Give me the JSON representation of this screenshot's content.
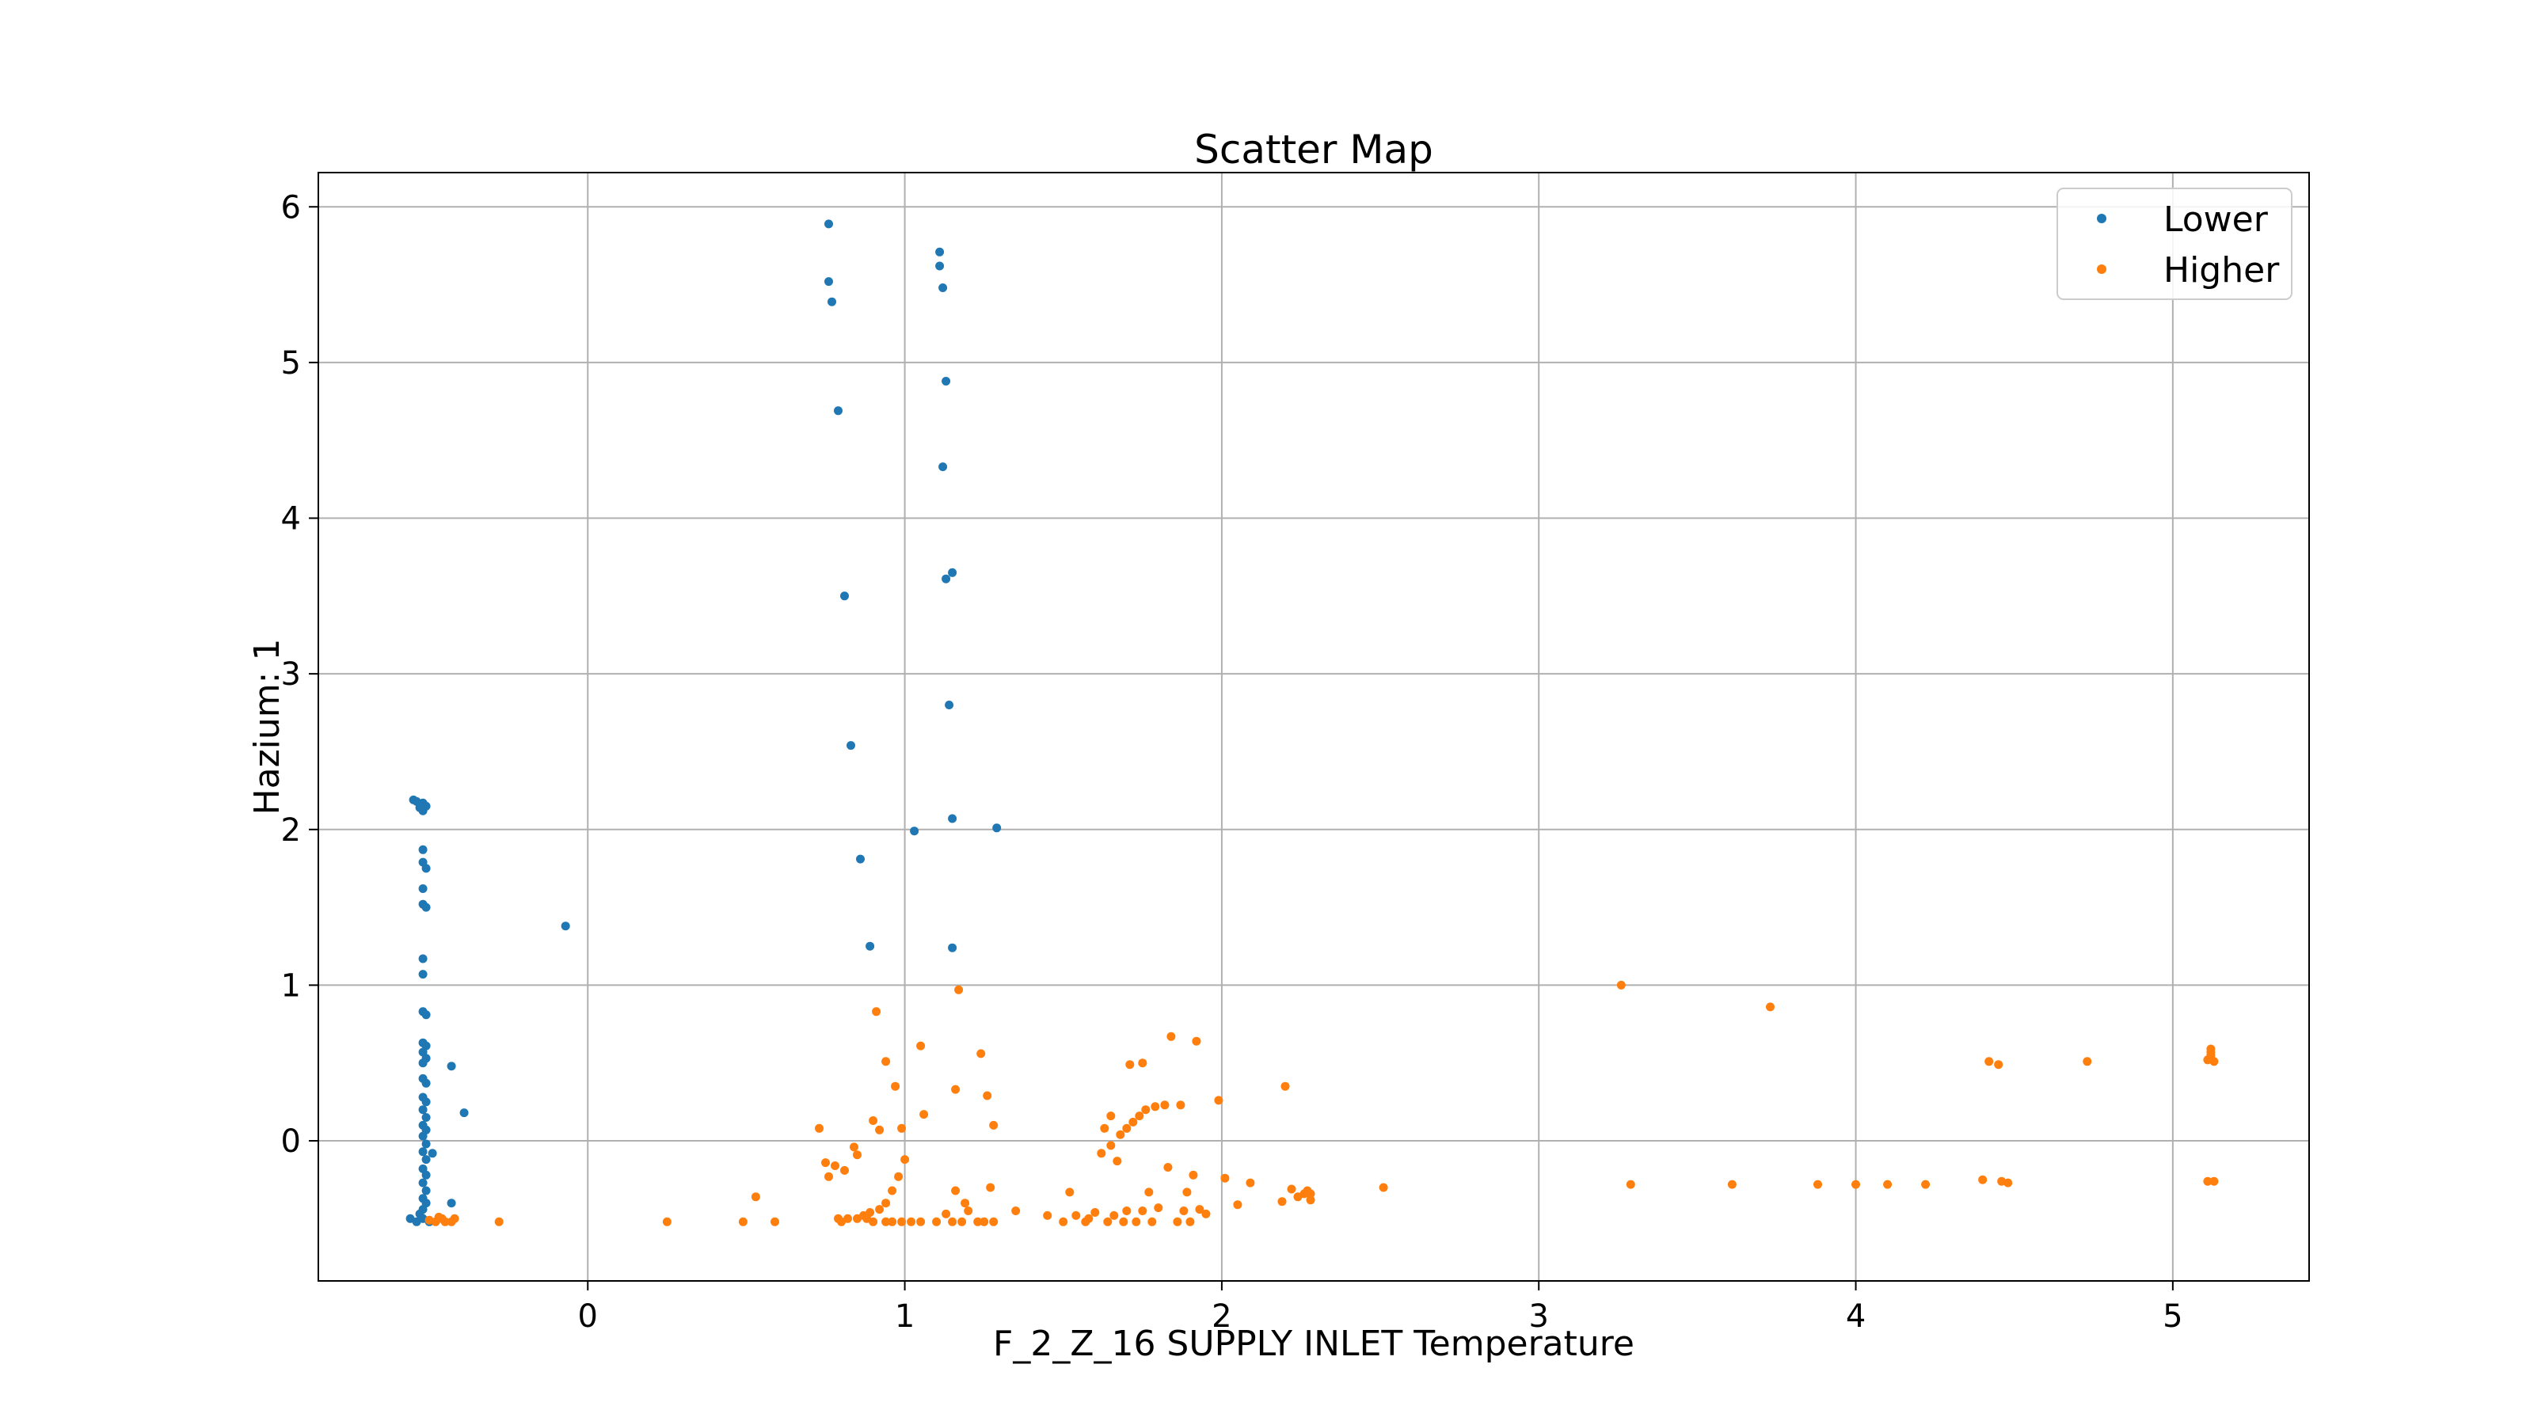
{
  "chart_data": {
    "type": "scatter",
    "title": "Scatter Map",
    "xlabel": "F_2_Z_16 SUPPLY INLET Temperature",
    "ylabel": "Hazium: 1",
    "xlim": [
      -0.85,
      5.43
    ],
    "ylim": [
      -0.9,
      6.22
    ],
    "xticks": [
      0,
      1,
      2,
      3,
      4,
      5
    ],
    "yticks": [
      0,
      1,
      2,
      3,
      4,
      5,
      6
    ],
    "grid": true,
    "legend_position": "top-right",
    "series": [
      {
        "name": "Lower",
        "color": "#1f77b4",
        "points": [
          [
            -0.55,
            2.19
          ],
          [
            -0.54,
            2.18
          ],
          [
            -0.52,
            2.17
          ],
          [
            -0.53,
            2.14
          ],
          [
            -0.52,
            2.12
          ],
          [
            -0.51,
            2.15
          ],
          [
            -0.52,
            1.87
          ],
          [
            -0.52,
            1.79
          ],
          [
            -0.51,
            1.75
          ],
          [
            -0.52,
            1.62
          ],
          [
            -0.52,
            1.52
          ],
          [
            -0.51,
            1.5
          ],
          [
            -0.52,
            1.17
          ],
          [
            -0.52,
            1.07
          ],
          [
            -0.52,
            0.83
          ],
          [
            -0.51,
            0.81
          ],
          [
            -0.52,
            0.63
          ],
          [
            -0.51,
            0.61
          ],
          [
            -0.52,
            0.57
          ],
          [
            -0.51,
            0.53
          ],
          [
            -0.52,
            0.5
          ],
          [
            -0.52,
            0.4
          ],
          [
            -0.51,
            0.37
          ],
          [
            -0.52,
            0.28
          ],
          [
            -0.51,
            0.25
          ],
          [
            -0.52,
            0.2
          ],
          [
            -0.51,
            0.15
          ],
          [
            -0.52,
            0.1
          ],
          [
            -0.51,
            0.07
          ],
          [
            -0.52,
            0.03
          ],
          [
            -0.51,
            -0.02
          ],
          [
            -0.52,
            -0.07
          ],
          [
            -0.51,
            -0.12
          ],
          [
            -0.52,
            -0.18
          ],
          [
            -0.51,
            -0.22
          ],
          [
            -0.52,
            -0.27
          ],
          [
            -0.51,
            -0.32
          ],
          [
            -0.52,
            -0.37
          ],
          [
            -0.51,
            -0.4
          ],
          [
            -0.52,
            -0.44
          ],
          [
            -0.53,
            -0.47
          ],
          [
            -0.52,
            -0.5
          ],
          [
            -0.56,
            -0.5
          ],
          [
            -0.54,
            -0.52
          ],
          [
            -0.5,
            -0.52
          ],
          [
            -0.49,
            -0.08
          ],
          [
            -0.43,
            0.48
          ],
          [
            -0.39,
            0.18
          ],
          [
            -0.43,
            -0.4
          ],
          [
            -0.07,
            1.38
          ],
          [
            0.76,
            5.89
          ],
          [
            0.76,
            5.52
          ],
          [
            0.77,
            5.39
          ],
          [
            0.79,
            4.69
          ],
          [
            0.81,
            3.5
          ],
          [
            0.83,
            2.54
          ],
          [
            0.86,
            1.81
          ],
          [
            0.89,
            1.25
          ],
          [
            1.03,
            1.99
          ],
          [
            1.11,
            5.71
          ],
          [
            1.11,
            5.62
          ],
          [
            1.12,
            5.48
          ],
          [
            1.13,
            4.88
          ],
          [
            1.12,
            4.33
          ],
          [
            1.15,
            3.65
          ],
          [
            1.13,
            3.61
          ],
          [
            1.14,
            2.8
          ],
          [
            1.15,
            2.07
          ],
          [
            1.15,
            1.24
          ],
          [
            1.29,
            2.01
          ]
        ]
      },
      {
        "name": "Higher",
        "color": "#ff7f0e",
        "points": [
          [
            -0.5,
            -0.51
          ],
          [
            -0.48,
            -0.52
          ],
          [
            -0.46,
            -0.5
          ],
          [
            -0.45,
            -0.52
          ],
          [
            -0.47,
            -0.49
          ],
          [
            -0.43,
            -0.52
          ],
          [
            -0.42,
            -0.5
          ],
          [
            -0.28,
            -0.52
          ],
          [
            0.25,
            -0.52
          ],
          [
            0.49,
            -0.52
          ],
          [
            0.53,
            -0.36
          ],
          [
            0.59,
            -0.52
          ],
          [
            0.73,
            0.08
          ],
          [
            0.75,
            -0.14
          ],
          [
            0.76,
            -0.23
          ],
          [
            0.78,
            -0.16
          ],
          [
            0.79,
            -0.5
          ],
          [
            0.8,
            -0.52
          ],
          [
            0.81,
            -0.19
          ],
          [
            0.82,
            -0.5
          ],
          [
            0.84,
            -0.04
          ],
          [
            0.85,
            -0.09
          ],
          [
            0.85,
            -0.5
          ],
          [
            0.87,
            -0.48
          ],
          [
            0.88,
            -0.5
          ],
          [
            0.89,
            -0.46
          ],
          [
            0.9,
            -0.52
          ],
          [
            0.9,
            0.13
          ],
          [
            0.91,
            0.83
          ],
          [
            0.92,
            -0.44
          ],
          [
            0.92,
            0.07
          ],
          [
            0.94,
            -0.52
          ],
          [
            0.94,
            -0.4
          ],
          [
            0.94,
            0.51
          ],
          [
            0.96,
            -0.52
          ],
          [
            0.96,
            -0.32
          ],
          [
            0.97,
            0.35
          ],
          [
            0.98,
            -0.23
          ],
          [
            0.99,
            -0.52
          ],
          [
            0.99,
            0.08
          ],
          [
            1.0,
            -0.12
          ],
          [
            1.02,
            -0.52
          ],
          [
            1.05,
            -0.52
          ],
          [
            1.05,
            0.61
          ],
          [
            1.06,
            0.17
          ],
          [
            1.1,
            -0.52
          ],
          [
            1.13,
            -0.47
          ],
          [
            1.15,
            -0.52
          ],
          [
            1.16,
            0.33
          ],
          [
            1.16,
            -0.32
          ],
          [
            1.17,
            0.97
          ],
          [
            1.18,
            -0.52
          ],
          [
            1.19,
            -0.4
          ],
          [
            1.2,
            -0.45
          ],
          [
            1.23,
            -0.52
          ],
          [
            1.24,
            0.56
          ],
          [
            1.25,
            -0.52
          ],
          [
            1.26,
            0.29
          ],
          [
            1.27,
            -0.3
          ],
          [
            1.28,
            -0.52
          ],
          [
            1.28,
            0.1
          ],
          [
            1.35,
            -0.45
          ],
          [
            1.45,
            -0.48
          ],
          [
            1.5,
            -0.52
          ],
          [
            1.52,
            -0.33
          ],
          [
            1.54,
            -0.48
          ],
          [
            1.57,
            -0.52
          ],
          [
            1.58,
            -0.5
          ],
          [
            1.6,
            -0.46
          ],
          [
            1.62,
            -0.08
          ],
          [
            1.63,
            0.08
          ],
          [
            1.64,
            -0.52
          ],
          [
            1.65,
            -0.03
          ],
          [
            1.65,
            0.16
          ],
          [
            1.66,
            -0.48
          ],
          [
            1.67,
            -0.13
          ],
          [
            1.68,
            0.04
          ],
          [
            1.69,
            -0.52
          ],
          [
            1.7,
            -0.45
          ],
          [
            1.7,
            0.08
          ],
          [
            1.71,
            0.49
          ],
          [
            1.72,
            0.12
          ],
          [
            1.73,
            -0.52
          ],
          [
            1.74,
            0.16
          ],
          [
            1.75,
            -0.45
          ],
          [
            1.75,
            0.5
          ],
          [
            1.76,
            0.2
          ],
          [
            1.77,
            -0.33
          ],
          [
            1.78,
            -0.52
          ],
          [
            1.79,
            0.22
          ],
          [
            1.8,
            -0.43
          ],
          [
            1.82,
            0.23
          ],
          [
            1.83,
            -0.17
          ],
          [
            1.84,
            0.67
          ],
          [
            1.86,
            -0.52
          ],
          [
            1.87,
            0.23
          ],
          [
            1.88,
            -0.45
          ],
          [
            1.89,
            -0.33
          ],
          [
            1.9,
            -0.52
          ],
          [
            1.91,
            -0.22
          ],
          [
            1.92,
            0.64
          ],
          [
            1.93,
            -0.44
          ],
          [
            1.95,
            -0.47
          ],
          [
            1.99,
            0.26
          ],
          [
            2.01,
            -0.24
          ],
          [
            2.05,
            -0.41
          ],
          [
            2.09,
            -0.27
          ],
          [
            2.19,
            -0.39
          ],
          [
            2.2,
            0.35
          ],
          [
            2.22,
            -0.31
          ],
          [
            2.24,
            -0.36
          ],
          [
            2.26,
            -0.34
          ],
          [
            2.27,
            -0.32
          ],
          [
            2.28,
            -0.38
          ],
          [
            2.28,
            -0.34
          ],
          [
            2.51,
            -0.3
          ],
          [
            3.26,
            1.0
          ],
          [
            3.29,
            -0.28
          ],
          [
            3.61,
            -0.28
          ],
          [
            3.73,
            0.86
          ],
          [
            3.88,
            -0.28
          ],
          [
            4.0,
            -0.28
          ],
          [
            4.1,
            -0.28
          ],
          [
            4.22,
            -0.28
          ],
          [
            4.4,
            -0.25
          ],
          [
            4.42,
            0.51
          ],
          [
            4.45,
            0.49
          ],
          [
            4.46,
            -0.26
          ],
          [
            4.48,
            -0.27
          ],
          [
            4.73,
            0.51
          ],
          [
            5.11,
            -0.26
          ],
          [
            5.12,
            0.59
          ],
          [
            5.12,
            0.57
          ],
          [
            5.12,
            0.55
          ],
          [
            5.12,
            0.53
          ],
          [
            5.13,
            0.51
          ],
          [
            5.11,
            0.52
          ],
          [
            5.13,
            -0.26
          ]
        ]
      }
    ]
  }
}
